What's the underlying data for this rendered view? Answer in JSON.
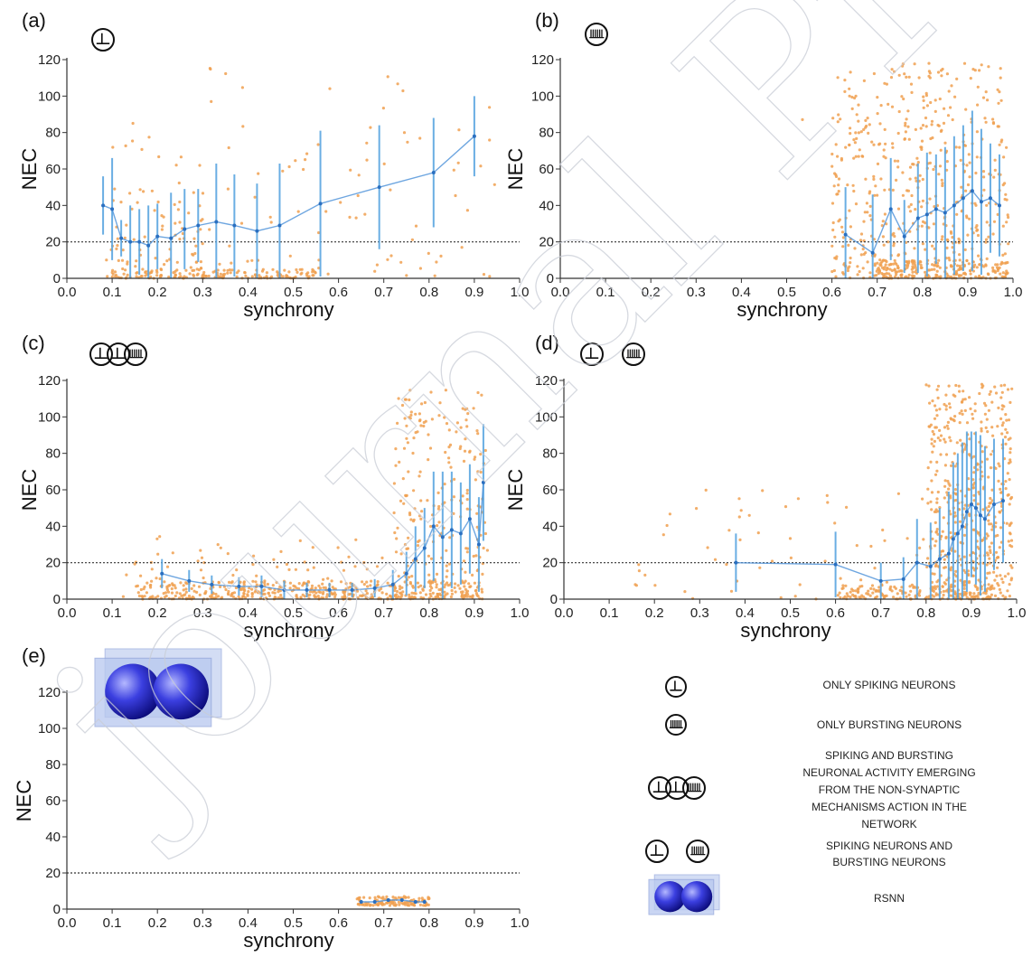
{
  "watermark": "journal Pre-proof",
  "panels": [
    {
      "id": "a",
      "label": "(a)",
      "xlabel": "synchrony",
      "ylabel": "NEC",
      "icons": [
        "spike"
      ]
    },
    {
      "id": "b",
      "label": "(b)",
      "xlabel": "synchrony",
      "ylabel": "NEC",
      "icons": [
        "burst"
      ]
    },
    {
      "id": "c",
      "label": "(c)",
      "xlabel": "synchrony",
      "ylabel": "NEC",
      "icons": [
        "spike",
        "spike",
        "burst"
      ]
    },
    {
      "id": "d",
      "label": "(d)",
      "xlabel": "synchrony",
      "ylabel": "NEC",
      "icons": [
        "spike",
        "burst"
      ]
    },
    {
      "id": "e",
      "label": "(e)",
      "xlabel": "synchrony",
      "ylabel": "NEC",
      "icons": [
        "rsnn"
      ]
    }
  ],
  "legend": [
    {
      "icon": "spike",
      "lines": [
        "ONLY SPIKING NEURONS"
      ]
    },
    {
      "icon": "burst",
      "lines": [
        "ONLY BURSTING NEURONS"
      ]
    },
    {
      "icon": "spike-spike-burst",
      "lines": [
        "SPIKING AND BURSTING",
        "NEURONAL ACTIVITY EMERGING",
        "FROM THE NON-SYNAPTIC",
        "MECHANISMS ACTION IN THE",
        "NETWORK"
      ]
    },
    {
      "icon": "spike-burst",
      "lines": [
        "SPIKING NEURONS AND",
        "BURSTING NEURONS"
      ]
    },
    {
      "icon": "rsnn",
      "lines": [
        "RSNN"
      ]
    }
  ],
  "colors": {
    "scatter": "#f0a050",
    "mean": "#4a90d8",
    "errorbar": "#5aa6e0",
    "threshold": "#333333",
    "axis": "#333333"
  },
  "chart_data": [
    {
      "panel": "a",
      "type": "scatter",
      "xlabel": "synchrony",
      "ylabel": "NEC",
      "xlim": [
        0.0,
        1.0
      ],
      "ylim": [
        0,
        120
      ],
      "xticks": [
        "0.0",
        "0.1",
        "0.2",
        "0.3",
        "0.4",
        "0.5",
        "0.6",
        "0.7",
        "0.8",
        "0.9",
        "1.0"
      ],
      "yticks": [
        "0",
        "20",
        "40",
        "60",
        "80",
        "100",
        "120"
      ],
      "threshold": 20,
      "mean_x": [
        0.08,
        0.1,
        0.12,
        0.14,
        0.16,
        0.18,
        0.2,
        0.23,
        0.26,
        0.29,
        0.33,
        0.37,
        0.42,
        0.47,
        0.56,
        0.69,
        0.81,
        0.9
      ],
      "mean_y": [
        40,
        38,
        22,
        20,
        20,
        18,
        23,
        22,
        27,
        29,
        31,
        29,
        26,
        29,
        41,
        50,
        58,
        78
      ],
      "err": [
        16,
        28,
        10,
        20,
        18,
        22,
        18,
        25,
        22,
        20,
        32,
        28,
        26,
        34,
        40,
        34,
        30,
        22
      ],
      "scatter": {
        "clusters": [
          {
            "x": [
              0.07,
              0.95
            ],
            "y": [
              0,
              116
            ],
            "n": 110,
            "seed": 11
          },
          {
            "x": [
              0.1,
              0.55
            ],
            "y": [
              0,
              5
            ],
            "n": 160,
            "seed": 12
          },
          {
            "x": [
              0.1,
              0.3
            ],
            "y": [
              5,
              50
            ],
            "n": 60,
            "seed": 13
          }
        ]
      }
    },
    {
      "panel": "b",
      "type": "scatter",
      "xlabel": "synchrony",
      "ylabel": "NEC",
      "xlim": [
        0.0,
        1.0
      ],
      "ylim": [
        0,
        120
      ],
      "xticks": [
        "0.0",
        "0.1",
        "0.2",
        "0.3",
        "0.4",
        "0.5",
        "0.6",
        "0.7",
        "0.8",
        "0.9",
        "1.0"
      ],
      "yticks": [
        "0",
        "20",
        "40",
        "60",
        "80",
        "100",
        "120"
      ],
      "threshold": 20,
      "mean_x": [
        0.63,
        0.69,
        0.73,
        0.76,
        0.79,
        0.81,
        0.83,
        0.85,
        0.87,
        0.89,
        0.91,
        0.93,
        0.95,
        0.97
      ],
      "mean_y": [
        24,
        14,
        38,
        23,
        33,
        35,
        38,
        36,
        40,
        44,
        48,
        42,
        44,
        40
      ],
      "err": [
        26,
        32,
        28,
        20,
        30,
        34,
        30,
        36,
        38,
        40,
        44,
        40,
        30,
        28
      ],
      "scatter": {
        "clusters": [
          {
            "x": [
              0.6,
              0.99
            ],
            "y": [
              0,
              118
            ],
            "n": 520,
            "seed": 21
          },
          {
            "x": [
              0.7,
              0.99
            ],
            "y": [
              0,
              10
            ],
            "n": 200,
            "seed": 22
          },
          {
            "x": [
              0.53,
              0.55
            ],
            "y": [
              86,
              90
            ],
            "n": 1,
            "seed": 23
          }
        ]
      }
    },
    {
      "panel": "c",
      "type": "scatter",
      "xlabel": "synchrony",
      "ylabel": "NEC",
      "xlim": [
        0.0,
        1.0
      ],
      "ylim": [
        0,
        120
      ],
      "xticks": [
        "0.0",
        "0.1",
        "0.2",
        "0.3",
        "0.4",
        "0.5",
        "0.6",
        "0.7",
        "0.8",
        "0.9",
        "1.0"
      ],
      "yticks": [
        "0",
        "20",
        "40",
        "60",
        "80",
        "100",
        "120"
      ],
      "threshold": 20,
      "mean_x": [
        0.21,
        0.27,
        0.32,
        0.38,
        0.43,
        0.48,
        0.53,
        0.58,
        0.63,
        0.68,
        0.72,
        0.75,
        0.77,
        0.79,
        0.81,
        0.83,
        0.85,
        0.87,
        0.89,
        0.91,
        0.92
      ],
      "mean_y": [
        14,
        10,
        8,
        7,
        7,
        5,
        5,
        5,
        5,
        6,
        8,
        14,
        22,
        28,
        40,
        34,
        38,
        36,
        44,
        30,
        64
      ],
      "err": [
        8,
        6,
        5,
        5,
        6,
        5,
        4,
        4,
        4,
        5,
        8,
        12,
        18,
        22,
        30,
        36,
        32,
        28,
        30,
        26,
        32
      ],
      "scatter": {
        "clusters": [
          {
            "x": [
              0.15,
              0.92
            ],
            "y": [
              0,
              10
            ],
            "n": 420,
            "seed": 31
          },
          {
            "x": [
              0.12,
              0.7
            ],
            "y": [
              0,
              35
            ],
            "n": 90,
            "seed": 32
          },
          {
            "x": [
              0.72,
              0.93
            ],
            "y": [
              0,
              115
            ],
            "n": 230,
            "seed": 33
          }
        ]
      }
    },
    {
      "panel": "d",
      "type": "scatter",
      "xlabel": "synchrony",
      "ylabel": "NEC",
      "xlim": [
        0.0,
        1.0
      ],
      "ylim": [
        0,
        120
      ],
      "xticks": [
        "0.0",
        "0.1",
        "0.2",
        "0.3",
        "0.4",
        "0.5",
        "0.6",
        "0.7",
        "0.8",
        "0.9",
        "1.0"
      ],
      "yticks": [
        "0",
        "20",
        "40",
        "60",
        "80",
        "100",
        "120"
      ],
      "threshold": 20,
      "mean_x": [
        0.38,
        0.6,
        0.7,
        0.75,
        0.78,
        0.81,
        0.83,
        0.85,
        0.86,
        0.87,
        0.88,
        0.89,
        0.9,
        0.91,
        0.92,
        0.93,
        0.95,
        0.97
      ],
      "mean_y": [
        20,
        19,
        10,
        11,
        20,
        18,
        22,
        25,
        33,
        36,
        40,
        48,
        52,
        50,
        46,
        44,
        52,
        54
      ],
      "err": [
        16,
        18,
        10,
        12,
        24,
        24,
        28,
        34,
        42,
        44,
        46,
        44,
        40,
        42,
        44,
        40,
        36,
        34
      ],
      "scatter": {
        "clusters": [
          {
            "x": [
              0.15,
              0.8
            ],
            "y": [
              0,
              60
            ],
            "n": 60,
            "seed": 41
          },
          {
            "x": [
              0.8,
              0.99
            ],
            "y": [
              0,
              118
            ],
            "n": 520,
            "seed": 42
          },
          {
            "x": [
              0.6,
              0.95
            ],
            "y": [
              0,
              8
            ],
            "n": 160,
            "seed": 43
          }
        ]
      }
    },
    {
      "panel": "e",
      "type": "scatter",
      "xlabel": "synchrony",
      "ylabel": "NEC",
      "xlim": [
        0.0,
        1.0
      ],
      "ylim": [
        0,
        120
      ],
      "xticks": [
        "0.0",
        "0.1",
        "0.2",
        "0.3",
        "0.4",
        "0.5",
        "0.6",
        "0.7",
        "0.8",
        "0.9",
        "1.0"
      ],
      "yticks": [
        "0",
        "20",
        "40",
        "60",
        "80",
        "100",
        "120"
      ],
      "threshold": 20,
      "mean_x": [
        0.65,
        0.68,
        0.71,
        0.74,
        0.77,
        0.79
      ],
      "mean_y": [
        4,
        4,
        5,
        5,
        4,
        4
      ],
      "err": [
        1,
        1,
        1,
        1,
        1,
        1
      ],
      "scatter": {
        "clusters": [
          {
            "x": [
              0.64,
              0.8
            ],
            "y": [
              2,
              7
            ],
            "n": 120,
            "seed": 51
          }
        ]
      }
    }
  ]
}
